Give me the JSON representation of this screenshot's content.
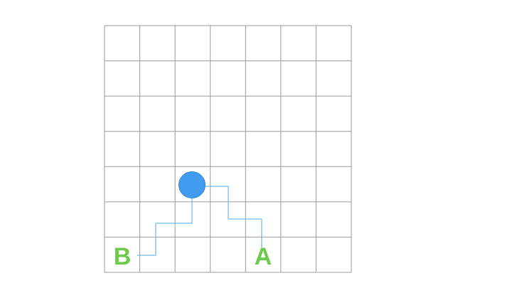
{
  "grid": {
    "columns": 7,
    "rows": 7,
    "line_color": "#9a9a9a"
  },
  "marker": {
    "color": "#419cf0",
    "stroke": "#2f86d6"
  },
  "path_color": "#6fb6e6",
  "labels": {
    "a": "A",
    "b": "B",
    "color": "#6ccb4c"
  }
}
